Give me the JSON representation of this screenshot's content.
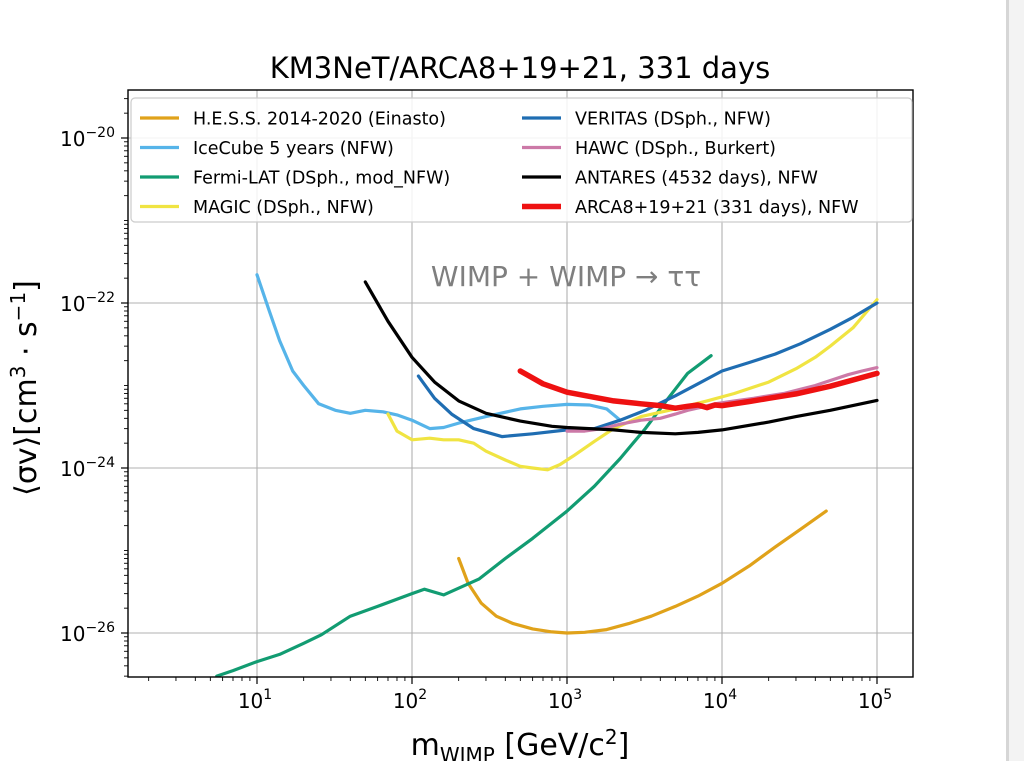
{
  "chart_data": {
    "type": "line",
    "title": "KM3NeT/ARCA8+19+21, 331 days",
    "xlabel": "m_WIMP [GeV/c^2]",
    "ylabel": "⟨σv⟩[cm^3·s^-1]",
    "x_scale": "log",
    "y_scale": "log",
    "xlim": [
      1.8,
      150000
    ],
    "ylim": [
      3e-27,
      5e-20
    ],
    "grid": true,
    "legend_position": "top",
    "annotation": "WIMP + WIMP → ττ",
    "x_ticks": [
      "10^1",
      "10^2",
      "10^3",
      "10^4",
      "10^5"
    ],
    "y_ticks": [
      "10^-20",
      "10^-22",
      "10^-24",
      "10^-26"
    ],
    "series": [
      {
        "name": "H.E.S.S. 2014-2020 (Einasto)",
        "color": "#e0a21a",
        "width": 3.2,
        "x": [
          200,
          230,
          280,
          350,
          450,
          600,
          800,
          1000,
          1300,
          1800,
          2500,
          3500,
          5000,
          7000,
          10000,
          15000,
          22000,
          32000,
          47000
        ],
        "y": [
          8e-26,
          4e-26,
          2.3e-26,
          1.6e-26,
          1.3e-26,
          1.12e-26,
          1.03e-26,
          1e-26,
          1.02e-26,
          1.1e-26,
          1.3e-26,
          1.6e-26,
          2.1e-26,
          2.8e-26,
          4e-26,
          6.5e-26,
          1.1e-25,
          1.8e-25,
          3e-25
        ]
      },
      {
        "name": "IceCube 5 years (NFW)",
        "color": "#56b4e9",
        "width": 3.2,
        "x": [
          10,
          12,
          14,
          17,
          20,
          25,
          32,
          40,
          50,
          65,
          80,
          100,
          130,
          160,
          200,
          300,
          500,
          700,
          1000,
          1400,
          1800,
          2200
        ],
        "y": [
          2.2e-22,
          8e-23,
          3.5e-23,
          1.5e-23,
          1e-23,
          6e-24,
          5e-24,
          4.6e-24,
          5e-24,
          4.8e-24,
          4.4e-24,
          3.8e-24,
          3e-24,
          3.1e-24,
          3.5e-24,
          4.2e-24,
          5.2e-24,
          5.6e-24,
          5.9e-24,
          5.8e-24,
          5.2e-24,
          3.8e-24
        ]
      },
      {
        "name": "Fermi-LAT (DSph., mod_NFW)",
        "color": "#129c72",
        "width": 3.2,
        "x": [
          5.5,
          7,
          10,
          14,
          20,
          26,
          40,
          60,
          100,
          120,
          160,
          270,
          400,
          600,
          1000,
          1500,
          2200,
          3200,
          4500,
          6000,
          8500
        ],
        "y": [
          3e-27,
          3.5e-27,
          4.5e-27,
          5.5e-27,
          7.5e-27,
          9.5e-27,
          1.6e-26,
          2.1e-26,
          3e-26,
          3.4e-26,
          2.9e-26,
          4.5e-26,
          8e-26,
          1.4e-25,
          3e-25,
          6e-25,
          1.3e-24,
          3e-24,
          7e-24,
          1.4e-23,
          2.3e-23
        ]
      },
      {
        "name": "MAGIC (DSph., NFW)",
        "color": "#f0e442",
        "width": 3.2,
        "x": [
          70,
          80,
          100,
          130,
          160,
          200,
          250,
          300,
          400,
          500,
          600,
          750,
          900,
          1100,
          1500,
          2000,
          3000,
          5000,
          8000,
          12000,
          20000,
          30000,
          40000,
          50000,
          70000,
          100000
        ],
        "y": [
          4.5e-24,
          2.8e-24,
          2.2e-24,
          2.3e-24,
          2.2e-24,
          2.2e-24,
          2e-24,
          1.6e-24,
          1.25e-24,
          1.05e-24,
          1e-24,
          9.5e-25,
          1.1e-24,
          1.4e-24,
          2.1e-24,
          3e-24,
          4.2e-24,
          5.2e-24,
          6.5e-24,
          8e-24,
          1.1e-23,
          1.6e-23,
          2.2e-23,
          3e-23,
          5e-23,
          1.1e-22
        ]
      },
      {
        "name": "VERITAS (DSph., NFW)",
        "color": "#1f6db2",
        "width": 3.2,
        "x": [
          110,
          140,
          180,
          250,
          380,
          600,
          1000,
          1500,
          2200,
          3200,
          5000,
          7000,
          10000,
          15000,
          22000,
          32000,
          50000,
          70000,
          100000
        ],
        "y": [
          1.3e-23,
          7e-24,
          4.5e-24,
          3e-24,
          2.4e-24,
          2.6e-24,
          2.9e-24,
          3e-24,
          3.8e-24,
          5e-24,
          7.5e-24,
          1.05e-23,
          1.5e-23,
          1.9e-23,
          2.4e-23,
          3.2e-23,
          4.8e-23,
          6.7e-23,
          1e-22
        ]
      },
      {
        "name": "HAWC (DSph., Burkert)",
        "color": "#cc79a7",
        "width": 3.2,
        "x": [
          1000,
          1300,
          1700,
          2200,
          3000,
          4000,
          5000,
          6000,
          7500,
          9000,
          12000,
          16000,
          20000,
          25000,
          32000,
          40000,
          50000,
          65000,
          80000,
          100000
        ],
        "y": [
          2.8e-24,
          2.8e-24,
          3e-24,
          3.4e-24,
          3.8e-24,
          4e-24,
          4.5e-24,
          5e-24,
          5.5e-24,
          6e-24,
          6.5e-24,
          7e-24,
          7.5e-24,
          8e-24,
          9e-24,
          1e-23,
          1.15e-23,
          1.35e-23,
          1.5e-23,
          1.65e-23
        ]
      },
      {
        "name": "ANTARES (4532 days), NFW",
        "color": "#000000",
        "width": 3.2,
        "x": [
          50,
          70,
          100,
          140,
          200,
          300,
          500,
          800,
          1000,
          2000,
          3000,
          5000,
          7000,
          10000,
          20000,
          30000,
          50000,
          100000
        ],
        "y": [
          1.8e-22,
          6e-23,
          2.2e-23,
          1.1e-23,
          6.5e-24,
          4.6e-24,
          3.7e-24,
          3.2e-24,
          3.1e-24,
          2.9e-24,
          2.7e-24,
          2.6e-24,
          2.7e-24,
          2.9e-24,
          3.6e-24,
          4.2e-24,
          5e-24,
          6.6e-24
        ]
      },
      {
        "name": "ARCA8+19+21 (331 days), NFW",
        "color": "#ee1111",
        "width": 5.5,
        "x": [
          500,
          700,
          1000,
          1500,
          2000,
          3000,
          4000,
          5000,
          6000,
          7000,
          8000,
          9000,
          10000,
          15000,
          20000,
          30000,
          50000,
          100000
        ],
        "y": [
          1.5e-23,
          1.05e-23,
          8.3e-24,
          7.2e-24,
          6.5e-24,
          6e-24,
          5.7e-24,
          5.3e-24,
          5.6e-24,
          5.8e-24,
          5.4e-24,
          5.8e-24,
          5.7e-24,
          6.4e-24,
          7e-24,
          7.9e-24,
          9.8e-24,
          1.4e-23
        ]
      }
    ]
  }
}
